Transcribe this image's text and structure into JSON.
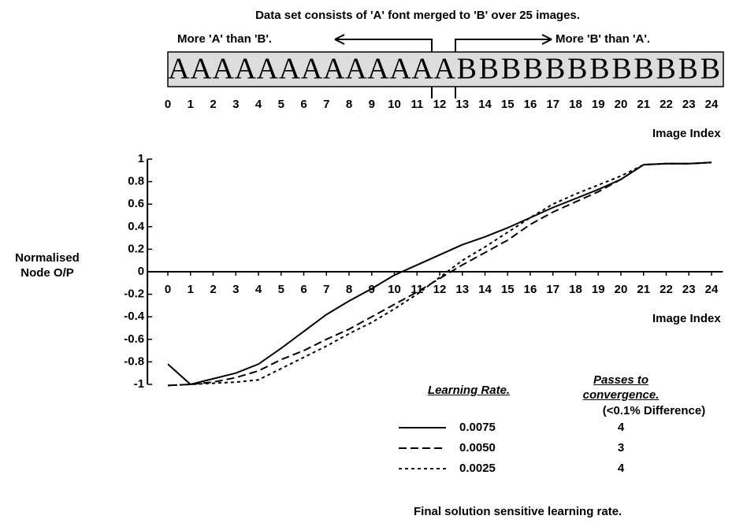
{
  "chart_data": {
    "type": "line",
    "strip": {
      "title": "Data set consists of 'A' font merged to 'B' over 25 images.",
      "annotation_left": "More 'A' than 'B'.",
      "annotation_right": "More 'B' than 'A'.",
      "letters": [
        "A",
        "A",
        "A",
        "A",
        "A",
        "A",
        "A",
        "A",
        "A",
        "A",
        "A",
        "A",
        "A",
        "B",
        "B",
        "B",
        "B",
        "B",
        "B",
        "B",
        "B",
        "B",
        "B",
        "B",
        "B"
      ],
      "ticks": [
        0,
        1,
        2,
        3,
        4,
        5,
        6,
        7,
        8,
        9,
        10,
        11,
        12,
        13,
        14,
        15,
        16,
        17,
        18,
        19,
        20,
        21,
        22,
        23,
        24
      ],
      "axis_label": "Image Index"
    },
    "x_label": "Image Index",
    "y_label": "Normalised Node O/P",
    "x": [
      0,
      1,
      2,
      3,
      4,
      5,
      6,
      7,
      8,
      9,
      10,
      11,
      12,
      13,
      14,
      15,
      16,
      17,
      18,
      19,
      20,
      21,
      22,
      23,
      24
    ],
    "xlim": [
      -0.9,
      24.5
    ],
    "xticks": [
      0,
      1,
      2,
      3,
      4,
      5,
      6,
      7,
      8,
      9,
      10,
      11,
      12,
      13,
      14,
      15,
      16,
      17,
      18,
      19,
      20,
      21,
      22,
      23,
      24
    ],
    "ylim": [
      -1,
      1
    ],
    "yticks": [
      1,
      0.8,
      0.6,
      0.4,
      0.2,
      0,
      -0.2,
      -0.4,
      -0.6,
      -0.8,
      -1
    ],
    "legend_headers": [
      "Learning Rate.",
      "Passes to convergence.",
      "(<0.1% Difference)"
    ],
    "series": [
      {
        "name": "0.0075",
        "dash": "solid",
        "color": "#000",
        "passes": 4,
        "values": [
          -0.82,
          -1.0,
          -0.95,
          -0.9,
          -0.82,
          -0.68,
          -0.53,
          -0.38,
          -0.26,
          -0.15,
          -0.03,
          0.06,
          0.15,
          0.24,
          0.31,
          0.39,
          0.48,
          0.57,
          0.65,
          0.73,
          0.82,
          0.95,
          0.96,
          0.96,
          0.97
        ]
      },
      {
        "name": "0.0050",
        "dash": "dashed",
        "color": "#000",
        "passes": 3,
        "values": [
          -1.01,
          -1.0,
          -0.98,
          -0.94,
          -0.88,
          -0.78,
          -0.7,
          -0.6,
          -0.51,
          -0.4,
          -0.29,
          -0.18,
          -0.06,
          0.06,
          0.17,
          0.28,
          0.42,
          0.53,
          0.62,
          0.71,
          0.82,
          0.95,
          0.96,
          0.96,
          0.97
        ]
      },
      {
        "name": "0.0025",
        "dash": "dotted",
        "color": "#000",
        "passes": 4,
        "values": [
          -1.01,
          -1.0,
          -0.99,
          -0.98,
          -0.96,
          -0.86,
          -0.76,
          -0.66,
          -0.55,
          -0.45,
          -0.33,
          -0.2,
          -0.05,
          0.1,
          0.22,
          0.35,
          0.48,
          0.6,
          0.69,
          0.77,
          0.85,
          0.95,
          0.96,
          0.96,
          0.97
        ]
      }
    ],
    "footnote": "Final solution sensitive learning rate."
  }
}
